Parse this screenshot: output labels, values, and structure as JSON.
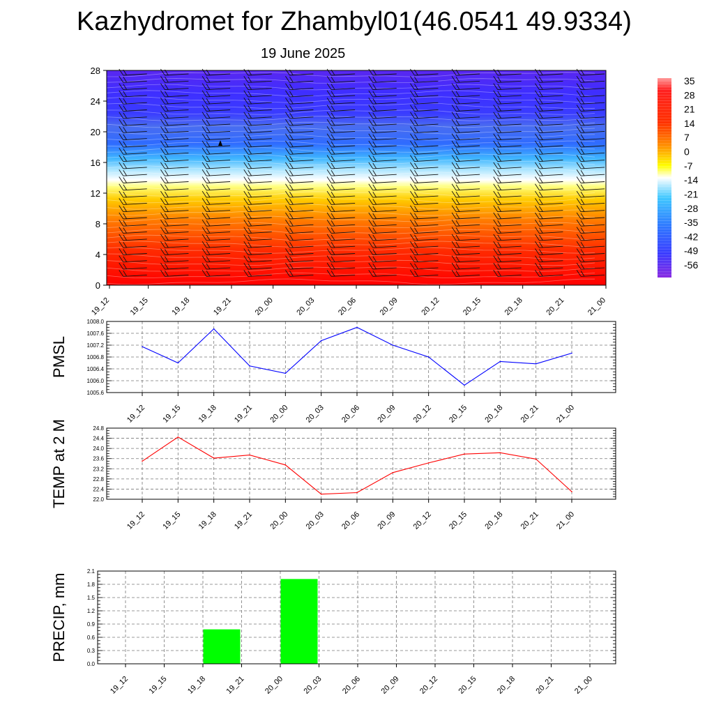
{
  "header": {
    "title": "Kazhydromet for Zhambyl01(46.0541 49.9334)",
    "date": "19 June 2025"
  },
  "colors": {
    "pmsl_line": "#0000ff",
    "temp_line": "#ff0000",
    "precip_bar": "#00ff00"
  },
  "chart_data": [
    {
      "type": "heatmap",
      "name": "temperature-cross-section",
      "x": [
        "19_12",
        "19_15",
        "19_18",
        "19_21",
        "20_00",
        "20_03",
        "20_06",
        "20_09",
        "20_12",
        "20_15",
        "20_18",
        "20_21",
        "21_00"
      ],
      "y_ticks": [
        0,
        4,
        8,
        12,
        16,
        20,
        24,
        28
      ],
      "ylim": [
        0,
        28
      ],
      "colorbar_labels": [
        "35",
        "28",
        "21",
        "14",
        "7",
        "0",
        "-7",
        "-14",
        "-21",
        "-28",
        "-35",
        "-42",
        "-49",
        "-56"
      ],
      "colorbar_colors": [
        "#ff0000",
        "#ff8800",
        "#ffff00",
        "#ffffff",
        "#44ccff",
        "#2b7cff",
        "#3a40ff",
        "#8a2be2"
      ],
      "wind_barbs": true
    },
    {
      "type": "line",
      "name": "pmsl",
      "ylabel": "PMSL",
      "x": [
        "19_12",
        "19_15",
        "19_18",
        "19_21",
        "20_00",
        "20_03",
        "20_06",
        "20_09",
        "20_12",
        "20_15",
        "20_18",
        "20_21",
        "21_00"
      ],
      "y": [
        1007.15,
        1006.6,
        1007.75,
        1006.5,
        1006.25,
        1007.35,
        1007.8,
        1007.2,
        1006.8,
        1005.85,
        1006.65,
        1006.57,
        1006.93
      ],
      "ylim": [
        1005.6,
        1008.0
      ],
      "y_ticks": [
        "1005.6",
        "1006.0",
        "1006.4",
        "1006.8",
        "1007.2",
        "1007.6",
        "1008.0"
      ],
      "grid": true
    },
    {
      "type": "line",
      "name": "temp2m",
      "ylabel": "TEMP at 2 M",
      "x": [
        "19_12",
        "19_15",
        "19_18",
        "19_21",
        "20_00",
        "20_03",
        "20_06",
        "20_09",
        "20_12",
        "20_15",
        "20_18",
        "20_21",
        "21_00"
      ],
      "y": [
        23.5,
        24.45,
        23.62,
        23.74,
        23.35,
        22.2,
        22.26,
        23.05,
        23.43,
        23.78,
        23.83,
        23.58,
        22.3
      ],
      "ylim": [
        22.0,
        24.8
      ],
      "y_ticks": [
        "22.0",
        "22.4",
        "22.8",
        "23.2",
        "23.6",
        "24.0",
        "24.4",
        "24.8"
      ],
      "grid": true
    },
    {
      "type": "bar",
      "name": "precip",
      "ylabel": "PRECIP, mm",
      "categories": [
        "19_12",
        "19_15",
        "19_18",
        "19_21",
        "20_00",
        "20_03",
        "20_06",
        "20_09",
        "20_12",
        "20_15",
        "20_18",
        "20_21",
        "21_00"
      ],
      "values": [
        0,
        0,
        0.78,
        0,
        1.92,
        0,
        0,
        0,
        0,
        0,
        0,
        0,
        0
      ],
      "ylim": [
        0,
        2.1
      ],
      "y_ticks": [
        "0.0",
        "0.3",
        "0.6",
        "0.9",
        "1.2",
        "1.5",
        "1.8",
        "2.1"
      ],
      "grid": true
    }
  ]
}
